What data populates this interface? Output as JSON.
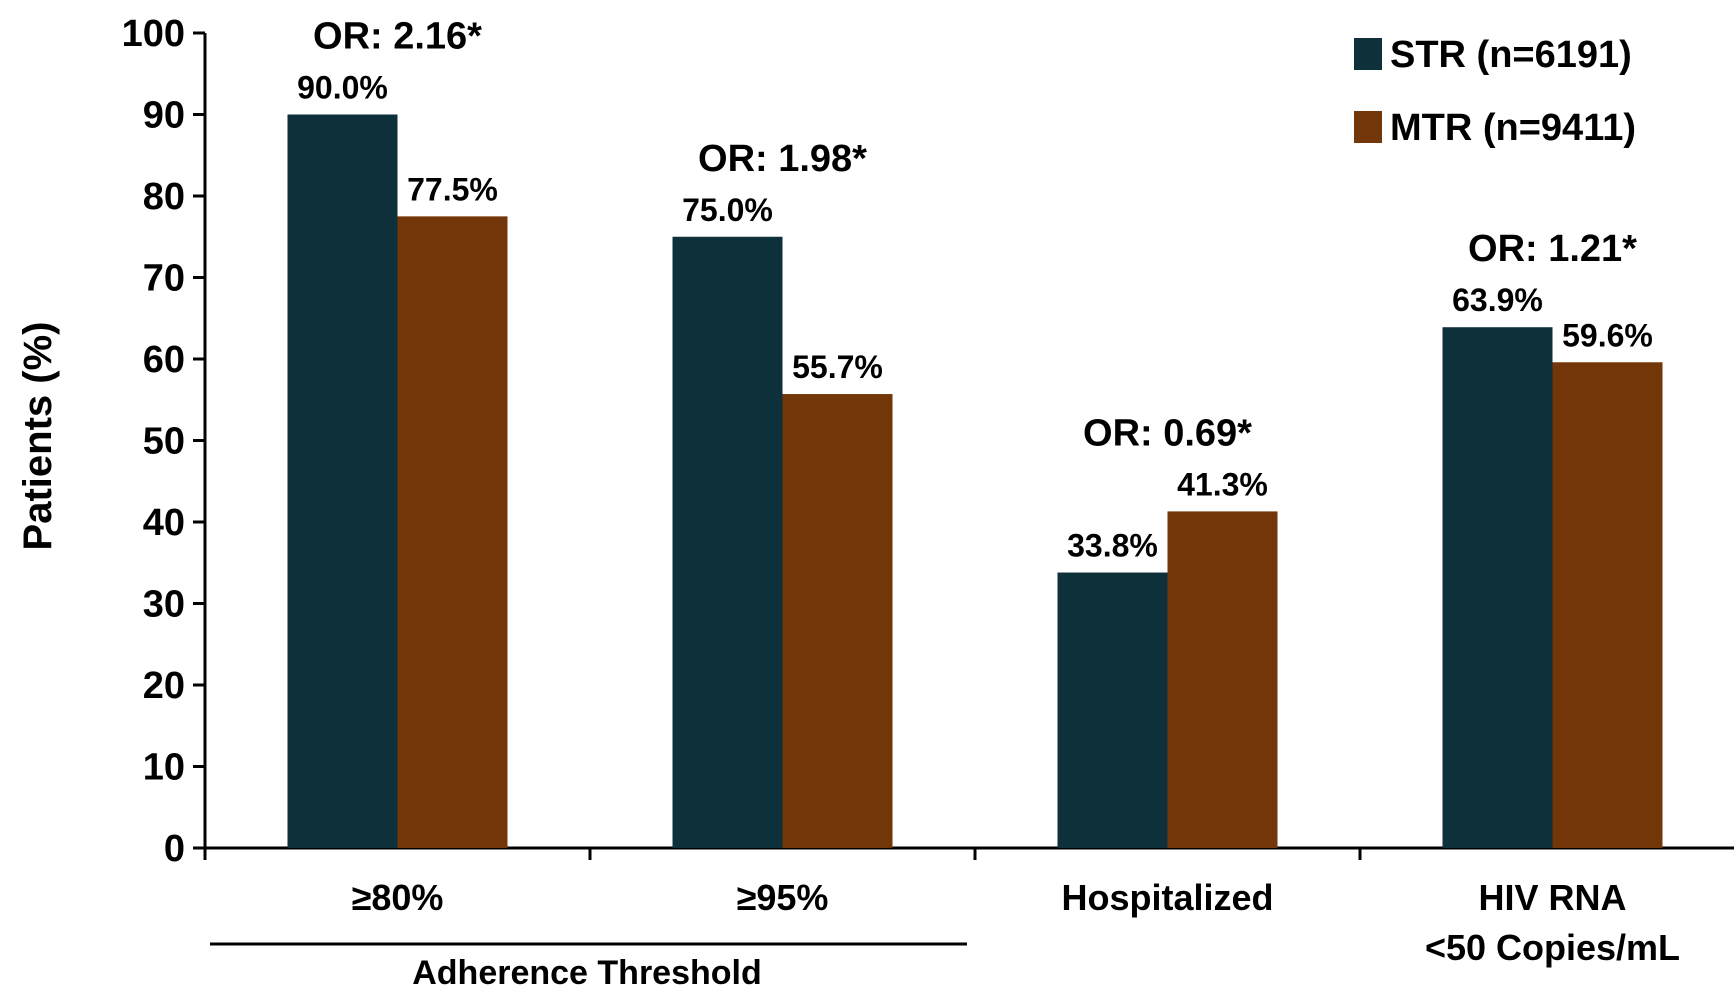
{
  "chart_data": {
    "type": "bar",
    "categories": [
      "≥80%",
      "≥95%",
      "Hospitalized",
      "HIV RNA\n<50 Copies/mL"
    ],
    "series": [
      {
        "name": "STR (n=6191)",
        "color": "#0e303b",
        "values": [
          90.0,
          75.0,
          33.8,
          63.9
        ],
        "labels": [
          "90.0%",
          "75.0%",
          "33.8%",
          "63.9%"
        ]
      },
      {
        "name": "MTR (n=9411)",
        "color": "#733608",
        "values": [
          77.5,
          55.7,
          41.3,
          59.6
        ],
        "labels": [
          "77.5%",
          "55.7%",
          "41.3%",
          "59.6%"
        ]
      }
    ],
    "annotations": [
      "OR: 2.16*",
      "OR: 1.98*",
      "OR: 0.69*",
      "OR: 1.21*"
    ],
    "group_label": "Adherence Threshold",
    "ylabel": "Patients (%)",
    "xlabel": "",
    "ylim": [
      0,
      100
    ],
    "yticks": [
      0,
      10,
      20,
      30,
      40,
      50,
      60,
      70,
      80,
      90,
      100
    ],
    "grid": false,
    "legend": "top-right"
  }
}
